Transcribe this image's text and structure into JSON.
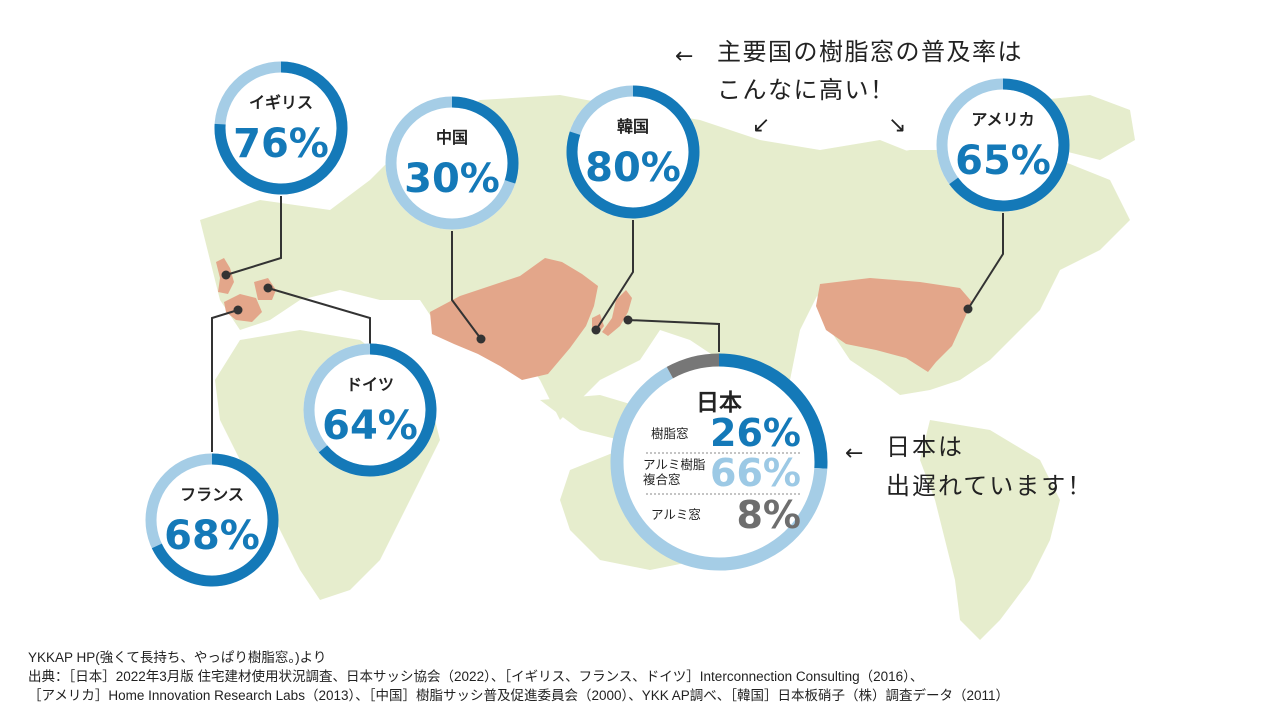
{
  "colors": {
    "land": "#e6edcd",
    "highlight": "#e3a68a",
    "ring_dark": "#1479b8",
    "ring_light": "#a5cde6",
    "ring_gray": "#777777",
    "text_blue": "#1479b8",
    "text_light_blue": "#9cc9e5",
    "text_gray": "#6e6e6e",
    "connector": "#333333"
  },
  "annotations": {
    "top_line1": "主要国の樹脂窓の普及率は",
    "top_line2": "こんなに高い！",
    "right_line1": "日本は",
    "right_line2": "出遅れています！"
  },
  "chart_data": {
    "type": "donut",
    "title": "",
    "series": [
      {
        "name": "イギリス",
        "label": "76%",
        "value": 76
      },
      {
        "name": "中国",
        "label": "30%",
        "value": 30
      },
      {
        "name": "韓国",
        "label": "80%",
        "value": 80
      },
      {
        "name": "アメリカ",
        "label": "65%",
        "value": 65
      },
      {
        "name": "ドイツ",
        "label": "64%",
        "value": 64
      },
      {
        "name": "フランス",
        "label": "68%",
        "value": 68
      }
    ],
    "japan": {
      "name": "日本",
      "segments": [
        {
          "name": "樹脂窓",
          "label": "26%",
          "value": 26
        },
        {
          "name_line1": "アルミ樹脂",
          "name_line2": "複合窓",
          "label": "66%",
          "value": 66
        },
        {
          "name": "アルミ窓",
          "label": "8%",
          "value": 8
        }
      ]
    }
  },
  "source": {
    "line1": "YKKAP HP(強くて長持ち、やっぱり樹脂窓。)より",
    "line2": "出典：［日本］2022年3月版 住宅建材使用状況調査、日本サッシ協会（2022）、［イギリス、フランス、ドイツ］Interconnection Consulting（2016）、",
    "line3": "［アメリカ］Home Innovation Research Labs（2013）、［中国］樹脂サッシ普及促進委員会（2000）、YKK AP調べ、［韓国］日本板硝子（株）調査データ（2011）"
  }
}
